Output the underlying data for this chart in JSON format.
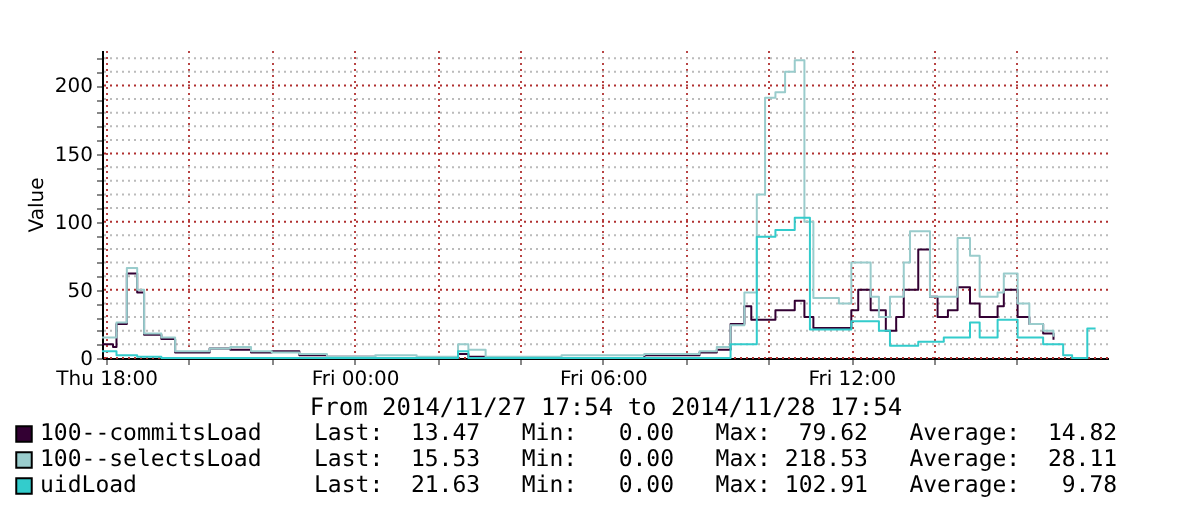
{
  "chart_data": {
    "type": "step",
    "xlabel": "From 2014/11/27 17:54 to 2014/11/28 17:54",
    "ylabel": "Value",
    "xlim": [
      "2014-11-27T17:54",
      "2014-11-28T18:12"
    ],
    "xticks": [
      {
        "value": "2014-11-27T18:00",
        "label": "Thu 18:00"
      },
      {
        "value": "2014-11-27T20:00",
        "label": null
      },
      {
        "value": "2014-11-27T22:00",
        "label": null
      },
      {
        "value": "2014-11-28T00:00",
        "label": "Fri 00:00"
      },
      {
        "value": "2014-11-28T02:00",
        "label": null
      },
      {
        "value": "2014-11-28T04:00",
        "label": null
      },
      {
        "value": "2014-11-28T06:00",
        "label": "Fri 06:00"
      },
      {
        "value": "2014-11-28T08:00",
        "label": null
      },
      {
        "value": "2014-11-28T10:00",
        "label": null
      },
      {
        "value": "2014-11-28T12:00",
        "label": "Fri 12:00"
      },
      {
        "value": "2014-11-28T14:00",
        "label": null
      },
      {
        "value": "2014-11-28T16:00",
        "label": null
      }
    ],
    "ylim": [
      0,
      226
    ],
    "yticks": [
      0,
      {
        "value": 10,
        "label": null
      },
      {
        "value": 20,
        "label": null
      },
      {
        "value": 30,
        "label": null
      },
      {
        "value": 40,
        "label": null
      },
      50,
      {
        "value": 60,
        "label": null
      },
      {
        "value": 70,
        "label": null
      },
      {
        "value": 80,
        "label": null
      },
      {
        "value": 90,
        "label": null
      },
      100,
      {
        "value": 110,
        "label": null
      },
      {
        "value": 120,
        "label": null
      },
      {
        "value": 130,
        "label": null
      },
      {
        "value": 140,
        "label": null
      },
      150,
      {
        "value": 160,
        "label": null
      },
      {
        "value": 170,
        "label": null
      },
      {
        "value": 180,
        "label": null
      },
      {
        "value": 190,
        "label": null
      },
      200,
      {
        "value": 210,
        "label": null
      },
      {
        "value": 220,
        "label": null
      }
    ],
    "grid": true,
    "legend": "bottom",
    "series": [
      {
        "name": "100--commitsLoad",
        "color": "#330033",
        "x": [
          "2014-11-27T17:54",
          "2014-11-27T18:10",
          "2014-11-27T18:15",
          "2014-11-27T18:30",
          "2014-11-27T18:45",
          "2014-11-27T18:55",
          "2014-11-27T19:20",
          "2014-11-27T19:40",
          "2014-11-27T20:30",
          "2014-11-27T21:00",
          "2014-11-27T21:30",
          "2014-11-27T22:00",
          "2014-11-27T22:40",
          "2014-11-27T23:20",
          "2014-11-28T00:30",
          "2014-11-28T02:30",
          "2014-11-28T02:45",
          "2014-11-28T03:10",
          "2014-11-28T07:00",
          "2014-11-28T08:20",
          "2014-11-28T08:45",
          "2014-11-28T09:05",
          "2014-11-28T09:25",
          "2014-11-28T09:35",
          "2014-11-28T10:10",
          "2014-11-28T10:38",
          "2014-11-28T10:52",
          "2014-11-28T11:05",
          "2014-11-28T12:00",
          "2014-11-28T12:10",
          "2014-11-28T12:28",
          "2014-11-28T12:50",
          "2014-11-28T13:05",
          "2014-11-28T13:16",
          "2014-11-28T13:37",
          "2014-11-28T13:54",
          "2014-11-28T14:05",
          "2014-11-28T14:20",
          "2014-11-28T14:34",
          "2014-11-28T14:52",
          "2014-11-28T15:06",
          "2014-11-28T15:32",
          "2014-11-28T15:41",
          "2014-11-28T16:01",
          "2014-11-28T16:18",
          "2014-11-28T16:38",
          "2014-11-28T16:53"
        ],
        "values": [
          10,
          8,
          25,
          62,
          48,
          17,
          14,
          4,
          7,
          6,
          4,
          5,
          2,
          1,
          0,
          3,
          1,
          0,
          2,
          4,
          6,
          25,
          38,
          28,
          35,
          42,
          30,
          22,
          35,
          50,
          35,
          20,
          30,
          50,
          79.62,
          45,
          30,
          35,
          52,
          40,
          30,
          38,
          50,
          30,
          25,
          18,
          13.47
        ]
      },
      {
        "name": "100--selectsLoad",
        "color": "#99cccc",
        "x": [
          "2014-11-27T17:54",
          "2014-11-27T18:15",
          "2014-11-27T18:30",
          "2014-11-27T18:45",
          "2014-11-27T18:55",
          "2014-11-27T19:20",
          "2014-11-27T19:40",
          "2014-11-27T20:30",
          "2014-11-27T21:00",
          "2014-11-27T21:30",
          "2014-11-27T22:00",
          "2014-11-27T22:40",
          "2014-11-27T23:20",
          "2014-11-28T00:30",
          "2014-11-28T01:30",
          "2014-11-28T02:30",
          "2014-11-28T02:45",
          "2014-11-28T03:10",
          "2014-11-28T05:00",
          "2014-11-28T07:00",
          "2014-11-28T08:20",
          "2014-11-28T08:45",
          "2014-11-28T09:05",
          "2014-11-28T09:25",
          "2014-11-28T09:43",
          "2014-11-28T09:55",
          "2014-11-28T10:10",
          "2014-11-28T10:24",
          "2014-11-28T10:38",
          "2014-11-28T10:52",
          "2014-11-28T11:05",
          "2014-11-28T11:42",
          "2014-11-28T12:00",
          "2014-11-28T12:28",
          "2014-11-28T12:40",
          "2014-11-28T12:56",
          "2014-11-28T13:16",
          "2014-11-28T13:25",
          "2014-11-28T13:54",
          "2014-11-28T14:14",
          "2014-11-28T14:34",
          "2014-11-28T14:52",
          "2014-11-28T15:06",
          "2014-11-28T15:32",
          "2014-11-28T15:41",
          "2014-11-28T16:01",
          "2014-11-28T16:18",
          "2014-11-28T16:38",
          "2014-11-28T16:53"
        ],
        "values": [
          15,
          26,
          66,
          50,
          18,
          15,
          5,
          7,
          8,
          5,
          4,
          3,
          1,
          2,
          1,
          10,
          6,
          1,
          2,
          3,
          5,
          8,
          24,
          48,
          120,
          191,
          195,
          210,
          218.53,
          100,
          44,
          40,
          70,
          45,
          30,
          45,
          70,
          93,
          45,
          45,
          88,
          75,
          45,
          48,
          62,
          40,
          25,
          20,
          15.53
        ]
      },
      {
        "name": "uidLoad",
        "color": "#33cccc",
        "x": [
          "2014-11-27T17:54",
          "2014-11-27T18:15",
          "2014-11-27T18:45",
          "2014-11-27T19:20",
          "2014-11-28T02:30",
          "2014-11-28T02:45",
          "2014-11-28T09:05",
          "2014-11-28T09:43",
          "2014-11-28T10:10",
          "2014-11-28T10:38",
          "2014-11-28T11:00",
          "2014-11-28T12:00",
          "2014-11-28T12:40",
          "2014-11-28T12:56",
          "2014-11-28T13:37",
          "2014-11-28T14:14",
          "2014-11-28T14:52",
          "2014-11-28T15:06",
          "2014-11-28T15:32",
          "2014-11-28T16:01",
          "2014-11-28T16:38",
          "2014-11-28T17:07",
          "2014-11-28T17:20",
          "2014-11-28T17:42",
          "2014-11-28T17:54"
        ],
        "values": [
          5,
          2,
          1,
          0,
          5,
          0,
          10,
          89,
          94,
          102.91,
          21,
          27,
          20,
          9,
          12,
          15,
          26,
          15,
          28,
          15,
          10,
          2,
          0,
          21.63,
          21.63
        ]
      }
    ],
    "annotations": [
      "Last:  13.47   Min:   0.00   Max:  79.62   Average:  14.82",
      "Last:  15.53   Min:   0.00   Max: 218.53   Average:  28.11",
      "Last:  21.63   Min:   0.00   Max: 102.91   Average:   9.78"
    ]
  }
}
